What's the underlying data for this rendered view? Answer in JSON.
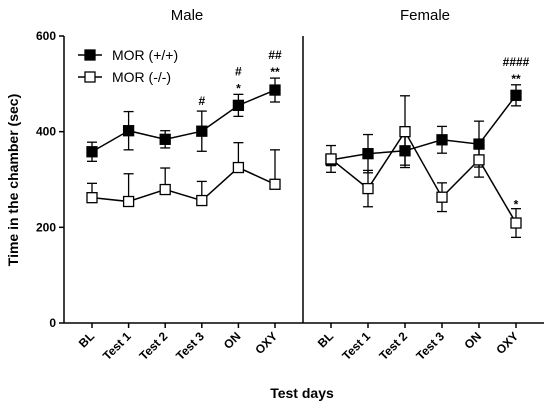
{
  "chart_data": {
    "type": "line",
    "ylabel": "Time in the chamber (sec)",
    "xlabel": "Test days",
    "ylim": [
      0,
      600
    ],
    "yticks": [
      "0",
      "200",
      "400",
      "600"
    ],
    "grid": false,
    "legend_position": "top-left",
    "categories": [
      "BL",
      "Test 1",
      "Test 2",
      "Test 3",
      "ON",
      "OXY"
    ],
    "legend": [
      "MOR (+/+)",
      "MOR (-/-)"
    ],
    "panels": [
      {
        "title": "Male",
        "series": [
          {
            "name": "MOR (+/+)",
            "marker": "filled-square",
            "values": [
              358,
              402,
              384,
              401,
              455,
              487
            ],
            "errors": [
              20,
              40,
              18,
              42,
              23,
              25
            ],
            "error_direction": "both"
          },
          {
            "name": "MOR (-/-)",
            "marker": "open-square",
            "values": [
              262,
              254,
              279,
              256,
              325,
              290
            ],
            "errors": [
              30,
              58,
              45,
              40,
              52,
              72
            ],
            "error_direction": "up"
          }
        ],
        "annotations": [
          {
            "category": "Test 3",
            "text": "#"
          },
          {
            "category": "ON",
            "text": "#"
          },
          {
            "category": "ON",
            "text": "*"
          },
          {
            "category": "OXY",
            "text": "##"
          },
          {
            "category": "OXY",
            "text": "**"
          }
        ]
      },
      {
        "title": "Female",
        "series": [
          {
            "name": "MOR (+/+)",
            "marker": "filled-square",
            "values": [
              341,
              354,
              360,
              383,
              374,
              476
            ],
            "errors": [
              12,
              40,
              30,
              28,
              48,
              22
            ],
            "error_direction": "both"
          },
          {
            "name": "MOR (-/-)",
            "marker": "open-square",
            "values": [
              343,
              281,
              400,
              263,
              341,
              209
            ],
            "errors": [
              28,
              38,
              75,
              30,
              36,
              30
            ],
            "error_direction": "both"
          }
        ],
        "annotations": [
          {
            "category": "OXY",
            "text": "####"
          },
          {
            "category": "OXY",
            "text": "**"
          },
          {
            "category": "OXY",
            "text": "*"
          }
        ]
      }
    ]
  }
}
